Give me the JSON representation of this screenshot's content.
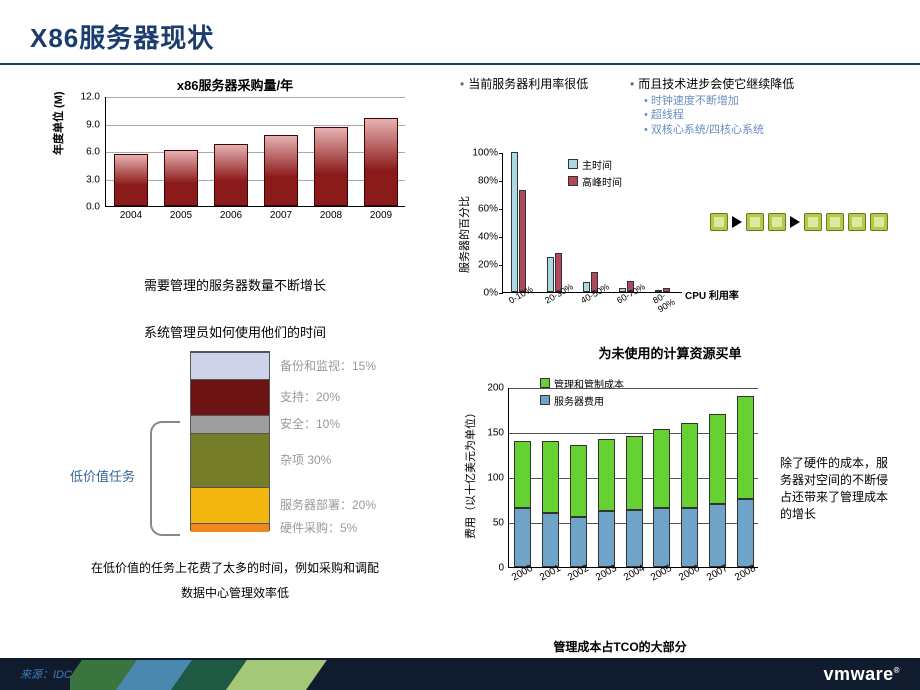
{
  "title": "X86服务器现状",
  "source_label": "来源：IDC",
  "logo_text": "vmware",
  "chart1": {
    "type": "bar",
    "title": "x86服务器采购量/年",
    "ylabel": "年度单位 (M)",
    "subtitle": "需要管理的服务器数量不断增长",
    "categories": [
      "2004",
      "2005",
      "2006",
      "2007",
      "2008",
      "2009"
    ],
    "values": [
      5.7,
      6.1,
      6.8,
      7.7,
      8.6,
      9.6
    ],
    "ylim": [
      0.0,
      12.0
    ],
    "ytick_step": 3.0,
    "bar_fill_top": "#e6b2b2",
    "bar_fill_bottom": "#8b1a1a",
    "border_color": "#4a0000",
    "grid_color": "#aaaaaa"
  },
  "stack": {
    "title": "系统管理员如何使用他们的时间",
    "low_value_label": "低价值任务",
    "subtitle_line1": "在低价值的任务上花费了太多的时间，例如采购和调配",
    "subtitle_line2": "数据中心管理效率低",
    "segments": [
      {
        "label": "备份和监视：15%",
        "pct": 15,
        "color": "#cfd3ea"
      },
      {
        "label": "支持：20%",
        "pct": 20,
        "color": "#6e1313"
      },
      {
        "label": "安全：10%",
        "pct": 10,
        "color": "#9e9e9e"
      },
      {
        "label": "杂项 30%",
        "pct": 30,
        "color": "#757d28"
      },
      {
        "label": "服务器部署：20%",
        "pct": 20,
        "color": "#f2b60f"
      },
      {
        "label": "硬件采购：5%",
        "pct": 5,
        "color": "#f0861e"
      }
    ]
  },
  "right_text": {
    "left_bullet": "当前服务器利用率很低",
    "right_bullet": "而且技术进步会使它继续降低",
    "sub_bullets": [
      "时钟速度不断增加",
      "超线程",
      "双核心系统/四核心系统"
    ]
  },
  "chart2": {
    "type": "grouped_bar",
    "ylabel": "服务器的百分比",
    "x_axis_title": "CPU 利用率",
    "subtitle": "为未使用的计算资源买单",
    "categories": [
      "0-10%",
      "20-30%",
      "40-50%",
      "60-70%",
      "80-90%"
    ],
    "series": [
      {
        "name": "主时间",
        "color": "#add8e6",
        "values": [
          100,
          25,
          7,
          3,
          1
        ]
      },
      {
        "name": "高峰时间",
        "color": "#b1485b",
        "values": [
          73,
          28,
          14,
          8,
          3
        ]
      }
    ],
    "ylim": [
      0,
      100
    ],
    "ytick_step": 20
  },
  "chart3": {
    "type": "stacked_bar",
    "ylabel": "费用（以十亿美元为单位）",
    "subtitle": "管理成本占TCO的大部分",
    "categories": [
      "2000",
      "2001",
      "2002",
      "2003",
      "2004",
      "2005",
      "2006",
      "2007",
      "2008"
    ],
    "series": [
      {
        "name": "管理和管制成本",
        "color": "#66d133",
        "values": [
          75,
          80,
          80,
          80,
          82,
          88,
          95,
          100,
          115
        ]
      },
      {
        "name": "服务器费用",
        "color": "#6fa3c7",
        "values": [
          65,
          60,
          55,
          62,
          63,
          65,
          65,
          70,
          75
        ]
      }
    ],
    "ylim": [
      0,
      200
    ],
    "ytick_step": 50,
    "caption": "除了硬件的成本，服务器对空间的不断侵占还带来了管理成本的增长"
  }
}
